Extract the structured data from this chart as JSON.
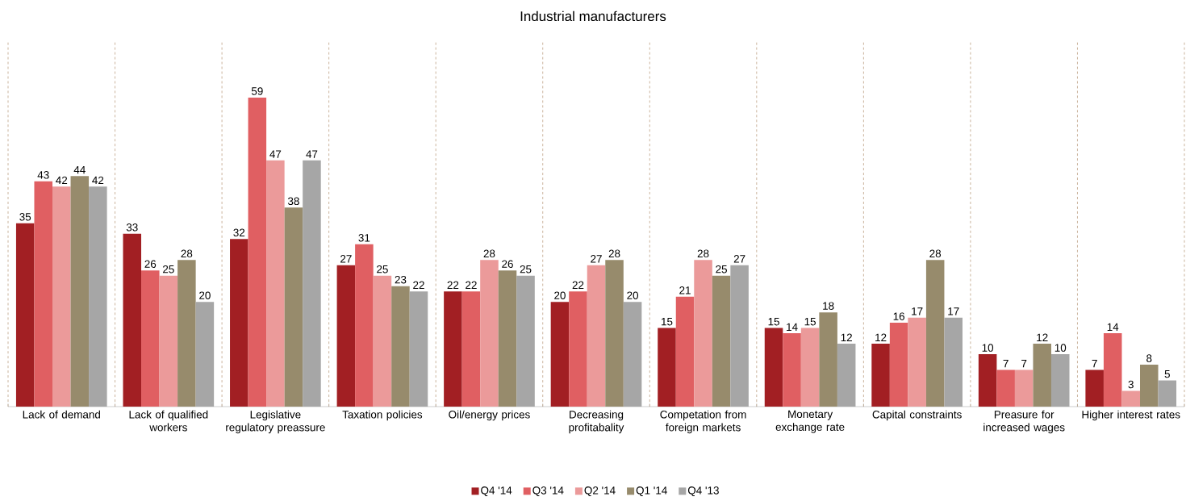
{
  "chart_data": {
    "type": "bar",
    "title": "Industrial manufacturers",
    "categories": [
      "Lack of demand",
      "Lack of qualified workers",
      "Legislative regulatory preassure",
      "Taxation policies",
      "Oil/energy prices",
      "Decreasing profitabality",
      "Competation from foreign markets",
      "Monetary exchange rate",
      "Capital constraints",
      "Preasure for increased wages",
      "Higher interest rates"
    ],
    "series": [
      {
        "name": "Q4 '14",
        "color": "#a21f23",
        "values": [
          35,
          33,
          32,
          27,
          22,
          20,
          15,
          15,
          12,
          10,
          7
        ]
      },
      {
        "name": "Q3 '14",
        "color": "#e05f62",
        "values": [
          43,
          26,
          59,
          31,
          22,
          22,
          21,
          14,
          16,
          7,
          14
        ]
      },
      {
        "name": "Q2 '14",
        "color": "#eb9a9a",
        "values": [
          42,
          25,
          47,
          25,
          28,
          27,
          28,
          15,
          17,
          7,
          3
        ]
      },
      {
        "name": "Q1 '14",
        "color": "#978b6c",
        "values": [
          44,
          28,
          38,
          23,
          26,
          28,
          25,
          18,
          28,
          12,
          8
        ]
      },
      {
        "name": "Q4 '13",
        "color": "#a6a6a6",
        "values": [
          42,
          20,
          47,
          22,
          25,
          20,
          27,
          12,
          17,
          10,
          5
        ]
      }
    ],
    "data_labels": true,
    "grid": "x",
    "legend": "bottom"
  }
}
